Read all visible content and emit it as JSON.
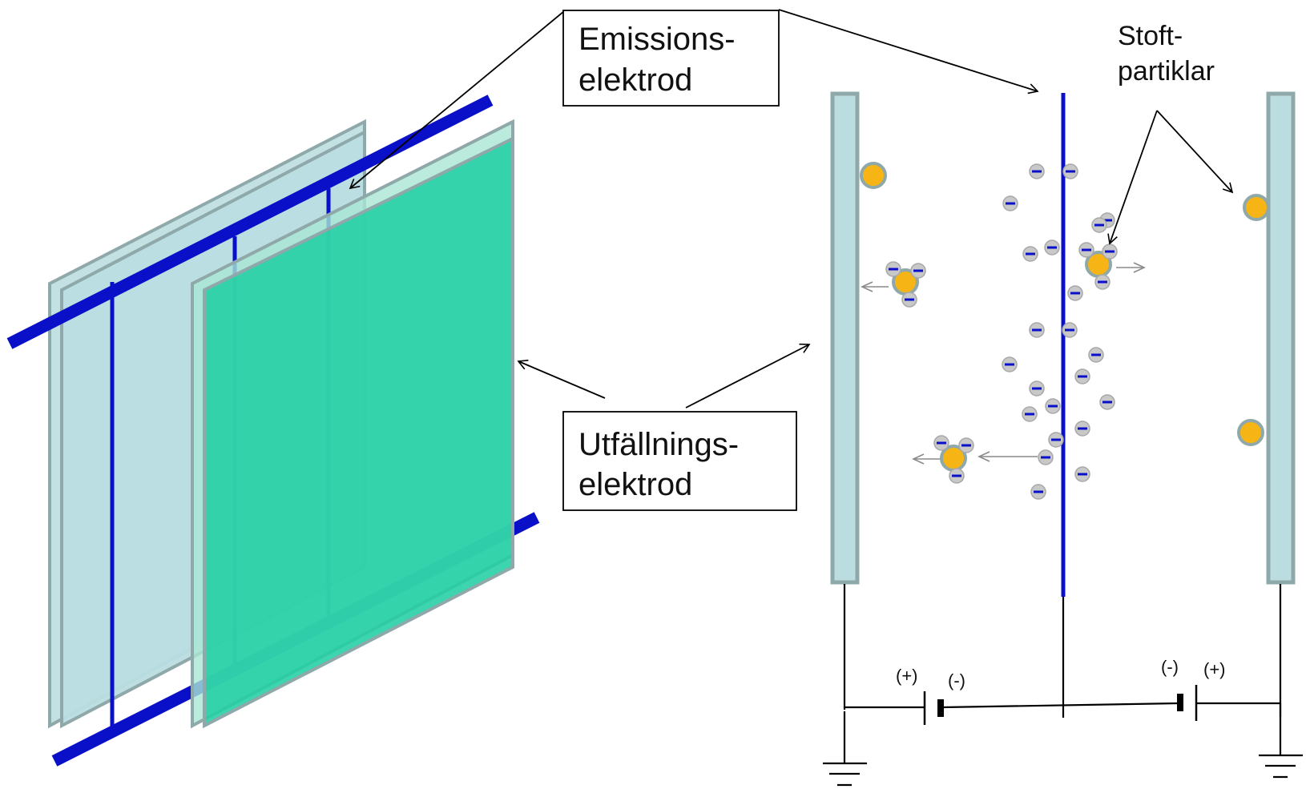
{
  "labels": {
    "emission_line1": "Emissions-",
    "emission_line2": "elektrod",
    "collector_line1": "Utfällnings-",
    "collector_line2": "elektrod",
    "dust_line1": "Stoft-",
    "dust_line2": "partiklar"
  },
  "polarity": {
    "left_plus": "(+)",
    "left_minus": "(-)",
    "right_minus": "(-)",
    "right_plus": "(+)"
  },
  "colors": {
    "plate_back": "#bcdde0",
    "plate_front": "#22cfa4",
    "plate_edge": "#8fa8aa",
    "electrode_blue": "#0a10c8",
    "dust_orange": "#f7b515",
    "ion_grey": "#c8c8c8"
  }
}
